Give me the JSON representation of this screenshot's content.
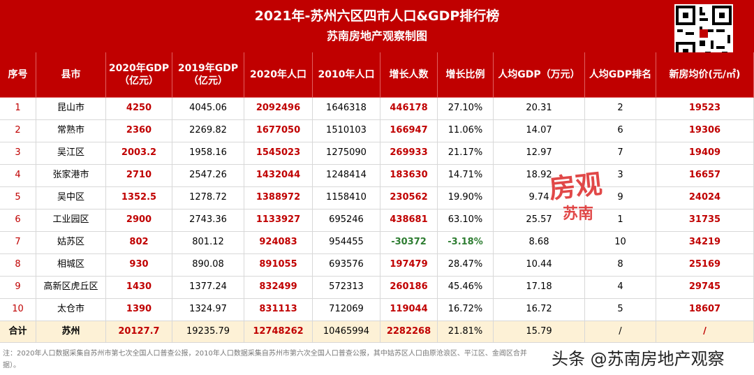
{
  "header": {
    "title": "2021年-苏州六区四市人口&GDP排行榜",
    "subtitle": "苏南房地产观察制图"
  },
  "table": {
    "columns": [
      "序号",
      "县市",
      "2020年GDP\n（亿元）",
      "2019年GDP\n（亿元）",
      "2020年人口",
      "2010年人口",
      "增长人数",
      "增长比例",
      "人均GDP（万元）",
      "人均GDP排名",
      "新房均价(元/㎡)"
    ],
    "rows": [
      [
        "1",
        "昆山市",
        "4250",
        "4045.06",
        "2092496",
        "1646318",
        "446178",
        "27.10%",
        "20.31",
        "2",
        "19523"
      ],
      [
        "2",
        "常熟市",
        "2360",
        "2269.82",
        "1677050",
        "1510103",
        "166947",
        "11.06%",
        "14.07",
        "6",
        "19306"
      ],
      [
        "3",
        "吴江区",
        "2003.2",
        "1958.16",
        "1545023",
        "1275090",
        "269933",
        "21.17%",
        "12.97",
        "7",
        "19409"
      ],
      [
        "4",
        "张家港市",
        "2710",
        "2547.26",
        "1432044",
        "1248414",
        "183630",
        "14.71%",
        "18.92",
        "3",
        "16657"
      ],
      [
        "5",
        "吴中区",
        "1352.5",
        "1278.72",
        "1388972",
        "1158410",
        "230562",
        "19.90%",
        "9.74",
        "9",
        "24024"
      ],
      [
        "6",
        "工业园区",
        "2900",
        "2743.36",
        "1133927",
        "695246",
        "438681",
        "63.10%",
        "25.57",
        "1",
        "31735"
      ],
      [
        "7",
        "姑苏区",
        "802",
        "801.12",
        "924083",
        "954455",
        "-30372",
        "-3.18%",
        "8.68",
        "10",
        "34219"
      ],
      [
        "8",
        "相城区",
        "930",
        "890.08",
        "891055",
        "693576",
        "197479",
        "28.47%",
        "10.44",
        "8",
        "25169"
      ],
      [
        "9",
        "高新区虎丘区",
        "1430",
        "1377.24",
        "832499",
        "572313",
        "260186",
        "45.46%",
        "17.18",
        "4",
        "29745"
      ],
      [
        "10",
        "太仓市",
        "1390",
        "1324.97",
        "831113",
        "712069",
        "119044",
        "16.72%",
        "16.72",
        "5",
        "18607"
      ]
    ],
    "total": [
      "合计",
      "苏州",
      "20127.7",
      "19235.79",
      "12748262",
      "10465994",
      "2282268",
      "21.81%",
      "15.79",
      "/",
      "/"
    ]
  },
  "note": [
    "注：2020年人口数据采集自苏州市第七次全国人口普查公报，2010年人口数据采集自苏州市第六次全国人口普查公报，其中姑苏区人口由原沧浪区、平江区、金阊区合并",
    "据）。"
  ],
  "watermark": {
    "stamp": [
      "房观",
      "苏南"
    ],
    "source": "头条 @苏南房地产观察"
  }
}
